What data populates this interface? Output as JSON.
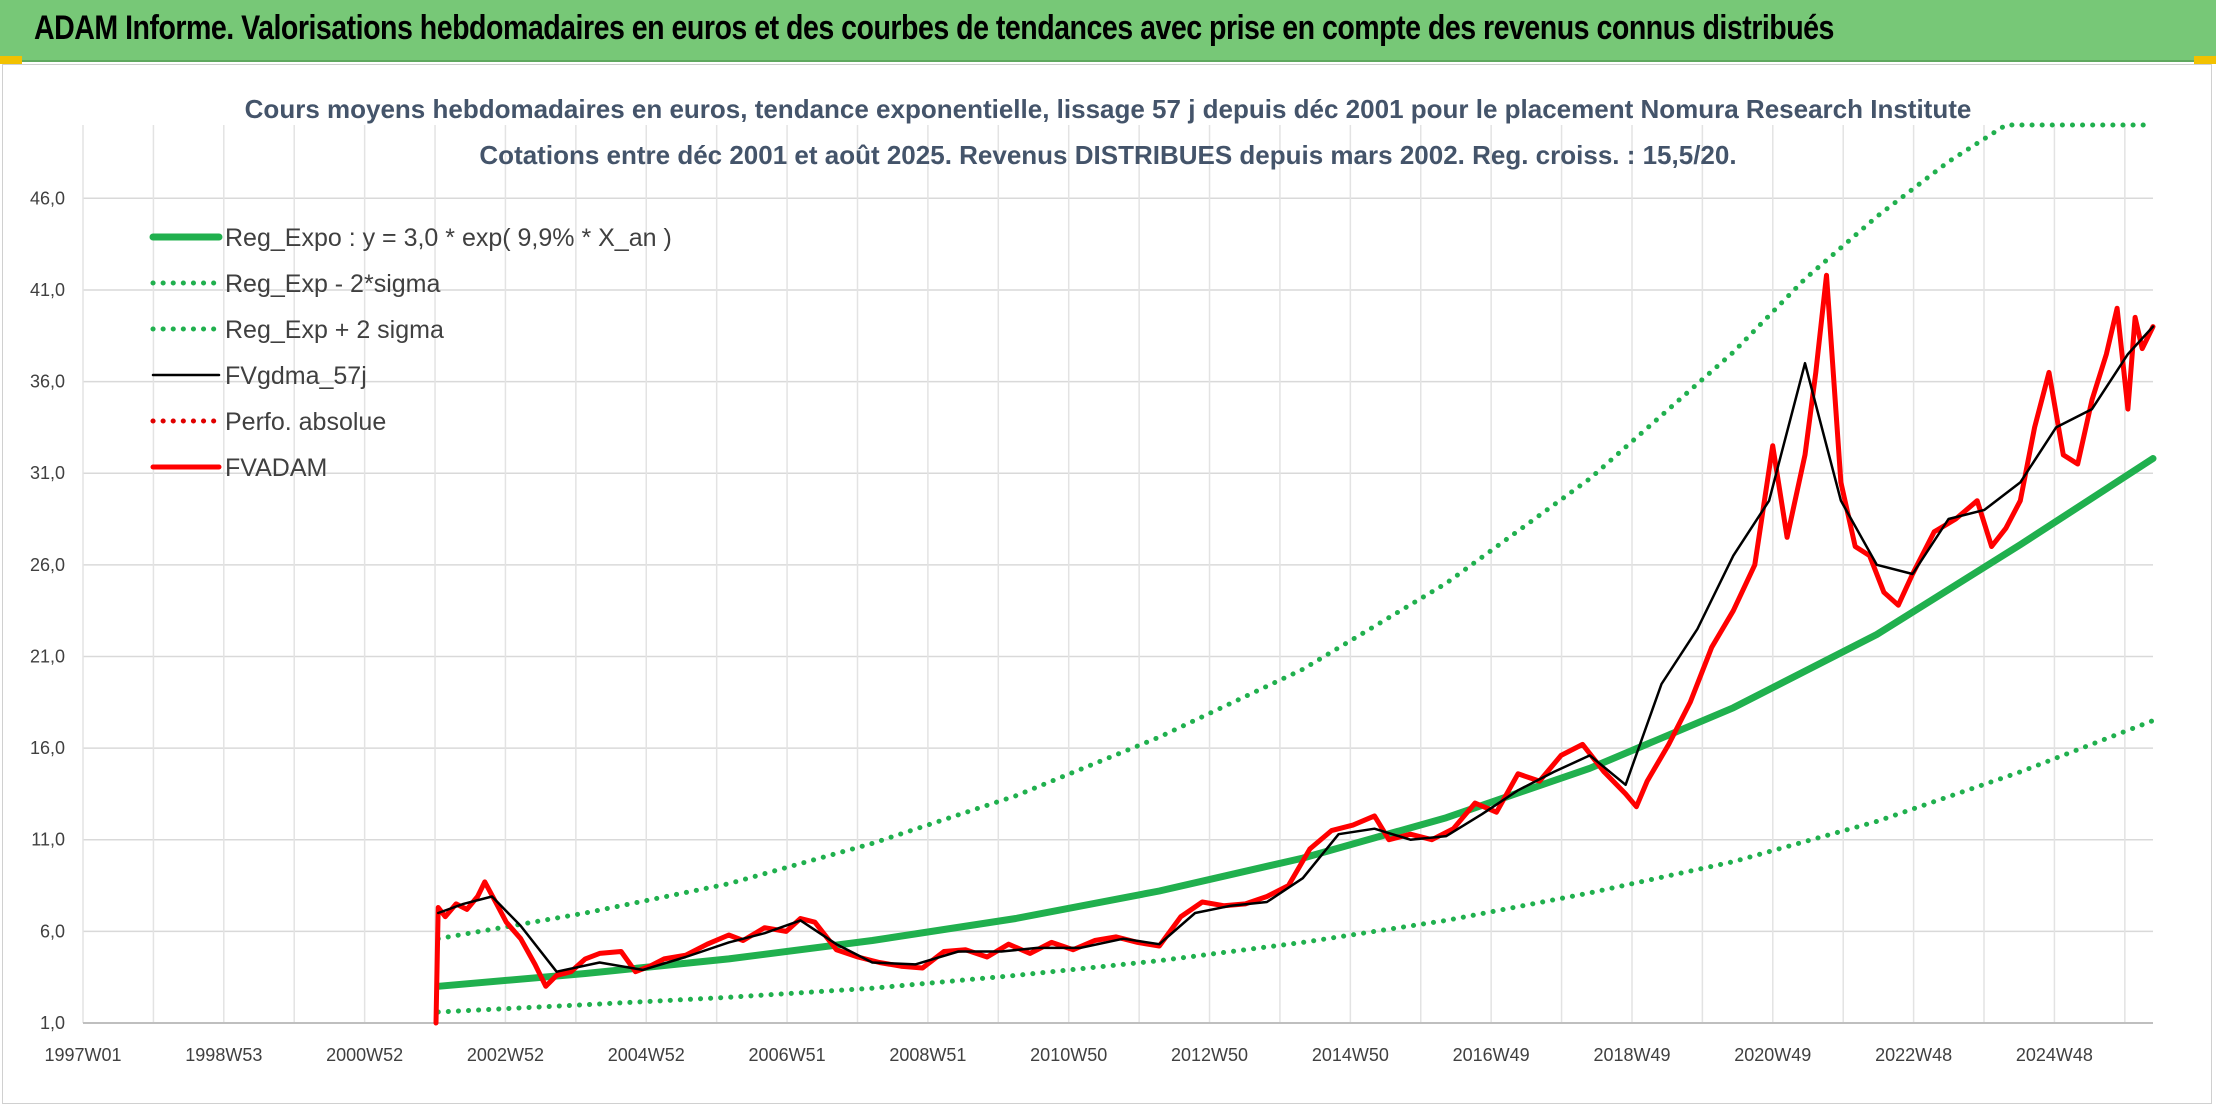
{
  "banner": {
    "title": "ADAM Informe. Valorisations hebdomadaires en euros et des courbes de tendances avec prise en compte des revenus connus distribués"
  },
  "chart_data": {
    "type": "line",
    "title": "Cours moyens hebdomadaires en euros, tendance exponentielle, lissage 57 j depuis déc 2001 pour le placement Nomura Research Institute",
    "subtitle": "Cotations entre déc 2001 et août 2025. Revenus DISTRIBUES depuis mars 2002. Reg. croiss. : 15,5/20.",
    "xlabel": "",
    "ylabel": "",
    "x_tick_labels": [
      "1997W01",
      "1998W53",
      "2000W52",
      "2002W52",
      "2004W52",
      "2006W51",
      "2008W51",
      "2010W50",
      "2012W50",
      "2014W50",
      "2016W49",
      "2018W49",
      "2020W49",
      "2022W48",
      "2024W48"
    ],
    "x_range": [
      1997.0,
      2025.85
    ],
    "y_ticks": [
      1.0,
      6.0,
      11.0,
      16.0,
      21.0,
      26.0,
      31.0,
      36.0,
      41.0,
      46.0
    ],
    "y_tick_labels": [
      "1,0",
      "6,0",
      "11,0",
      "16,0",
      "21,0",
      "26,0",
      "31,0",
      "36,0",
      "41,0",
      "46,0"
    ],
    "ylim": [
      1.0,
      50.0
    ],
    "grid": true,
    "legend_position": "top-left",
    "colors": {
      "reg": "#20b04e",
      "band": "#20b04e",
      "smooth": "#000000",
      "perfo": "#e00000",
      "fvadam": "#ff0000"
    },
    "series": [
      {
        "name": "Reg_Expo : y = 3,0 * exp( 9,9% *  X_an )",
        "style": "solid-thick",
        "color": "#20b04e",
        "x": [
          2001.95,
          2004.0,
          2006.0,
          2008.0,
          2010.0,
          2012.0,
          2014.0,
          2016.0,
          2018.0,
          2020.0,
          2022.0,
          2024.0,
          2025.85
        ],
        "values": [
          3.0,
          3.7,
          4.5,
          5.5,
          6.7,
          8.2,
          10.0,
          12.2,
          14.9,
          18.2,
          22.2,
          27.1,
          31.8
        ]
      },
      {
        "name": "Reg_Exp - 2*sigma",
        "style": "dotted",
        "color": "#20b04e",
        "x": [
          2001.95,
          2004.0,
          2006.0,
          2008.0,
          2010.0,
          2012.0,
          2014.0,
          2016.0,
          2018.0,
          2020.0,
          2022.0,
          2024.0,
          2025.85
        ],
        "values": [
          1.6,
          2.0,
          2.4,
          2.9,
          3.6,
          4.4,
          5.4,
          6.6,
          8.1,
          9.8,
          12.0,
          14.7,
          17.5
        ]
      },
      {
        "name": "Reg_Exp + 2 sigma",
        "style": "dotted",
        "color": "#20b04e",
        "x": [
          2001.95,
          2004.0,
          2006.0,
          2008.0,
          2010.0,
          2012.0,
          2014.0,
          2016.0,
          2018.0,
          2020.0,
          2021.0,
          2022.0,
          2023.0,
          2023.8,
          2024.5,
          2025.85
        ],
        "values": [
          5.6,
          7.0,
          8.6,
          10.8,
          13.4,
          16.6,
          20.3,
          25.0,
          30.7,
          37.6,
          41.6,
          45.0,
          48.0,
          50.0,
          50.0,
          50.0
        ]
      },
      {
        "name": "FVgdma_57j",
        "style": "solid",
        "color": "#000000",
        "x": [
          2001.95,
          2002.3,
          2002.7,
          2003.1,
          2003.6,
          2004.2,
          2004.8,
          2005.4,
          2006.0,
          2006.5,
          2007.0,
          2007.5,
          2008.0,
          2008.6,
          2009.2,
          2009.8,
          2010.3,
          2010.9,
          2011.5,
          2012.0,
          2012.5,
          2013.0,
          2013.5,
          2014.0,
          2014.5,
          2015.0,
          2015.5,
          2016.0,
          2016.5,
          2017.0,
          2017.5,
          2018.0,
          2018.5,
          2019.0,
          2019.5,
          2020.0,
          2020.5,
          2021.0,
          2021.5,
          2022.0,
          2022.5,
          2023.0,
          2023.5,
          2024.0,
          2024.5,
          2025.0,
          2025.5,
          2025.85
        ],
        "values": [
          7.0,
          7.5,
          7.9,
          6.3,
          3.8,
          4.3,
          3.9,
          4.6,
          5.4,
          5.9,
          6.6,
          5.3,
          4.3,
          4.2,
          4.9,
          4.9,
          5.1,
          5.1,
          5.6,
          5.3,
          7.0,
          7.4,
          7.6,
          8.9,
          11.3,
          11.6,
          11.0,
          11.2,
          12.4,
          13.7,
          14.7,
          15.6,
          14.0,
          19.5,
          22.5,
          26.5,
          29.5,
          37.0,
          29.5,
          26.0,
          25.5,
          28.5,
          29.0,
          30.5,
          33.5,
          34.5,
          37.5,
          39.0
        ]
      },
      {
        "name": "Perfo. absolue",
        "style": "dotted",
        "color": "#e00000",
        "x": [],
        "values": []
      },
      {
        "name": "FVADAM",
        "style": "solid-thick",
        "color": "#ff0000",
        "x": [
          2001.92,
          2001.95,
          2002.05,
          2002.2,
          2002.35,
          2002.5,
          2002.6,
          2002.75,
          2002.9,
          2003.1,
          2003.3,
          2003.45,
          2003.6,
          2003.8,
          2004.0,
          2004.2,
          2004.5,
          2004.7,
          2004.9,
          2005.1,
          2005.4,
          2005.7,
          2006.0,
          2006.2,
          2006.5,
          2006.8,
          2007.0,
          2007.2,
          2007.5,
          2007.8,
          2008.1,
          2008.4,
          2008.7,
          2009.0,
          2009.3,
          2009.6,
          2009.9,
          2010.2,
          2010.5,
          2010.8,
          2011.1,
          2011.4,
          2011.7,
          2012.0,
          2012.3,
          2012.6,
          2012.9,
          2013.2,
          2013.5,
          2013.8,
          2014.1,
          2014.4,
          2014.7,
          2015.0,
          2015.2,
          2015.5,
          2015.8,
          2016.1,
          2016.4,
          2016.7,
          2017.0,
          2017.3,
          2017.6,
          2017.9,
          2018.2,
          2018.5,
          2018.65,
          2018.8,
          2019.1,
          2019.4,
          2019.7,
          2020.0,
          2020.3,
          2020.55,
          2020.75,
          2021.0,
          2021.15,
          2021.3,
          2021.5,
          2021.7,
          2021.9,
          2022.1,
          2022.3,
          2022.5,
          2022.8,
          2023.1,
          2023.4,
          2023.6,
          2023.8,
          2024.0,
          2024.2,
          2024.4,
          2024.6,
          2024.8,
          2025.0,
          2025.2,
          2025.35,
          2025.5,
          2025.6,
          2025.7,
          2025.85
        ],
        "values": [
          1.0,
          7.3,
          6.8,
          7.5,
          7.2,
          7.9,
          8.7,
          7.6,
          6.5,
          5.6,
          4.2,
          3.0,
          3.6,
          3.8,
          4.5,
          4.8,
          4.9,
          3.8,
          4.1,
          4.5,
          4.7,
          5.3,
          5.8,
          5.5,
          6.2,
          6.0,
          6.7,
          6.5,
          5.0,
          4.6,
          4.3,
          4.1,
          4.0,
          4.9,
          5.0,
          4.6,
          5.3,
          4.8,
          5.4,
          5.0,
          5.5,
          5.7,
          5.4,
          5.2,
          6.8,
          7.6,
          7.4,
          7.5,
          7.9,
          8.5,
          10.5,
          11.5,
          11.8,
          12.3,
          11.0,
          11.3,
          11.0,
          11.6,
          13.0,
          12.5,
          14.6,
          14.2,
          15.6,
          16.2,
          14.7,
          13.5,
          12.8,
          14.2,
          16.2,
          18.5,
          21.5,
          23.5,
          26.0,
          32.5,
          27.5,
          32.0,
          36.5,
          41.8,
          30.5,
          27.0,
          26.5,
          24.5,
          23.8,
          25.5,
          27.8,
          28.5,
          29.5,
          27.0,
          28.0,
          29.5,
          33.5,
          36.5,
          32.0,
          31.5,
          35.0,
          37.5,
          40.0,
          34.5,
          39.5,
          37.8,
          39.0
        ]
      }
    ]
  }
}
